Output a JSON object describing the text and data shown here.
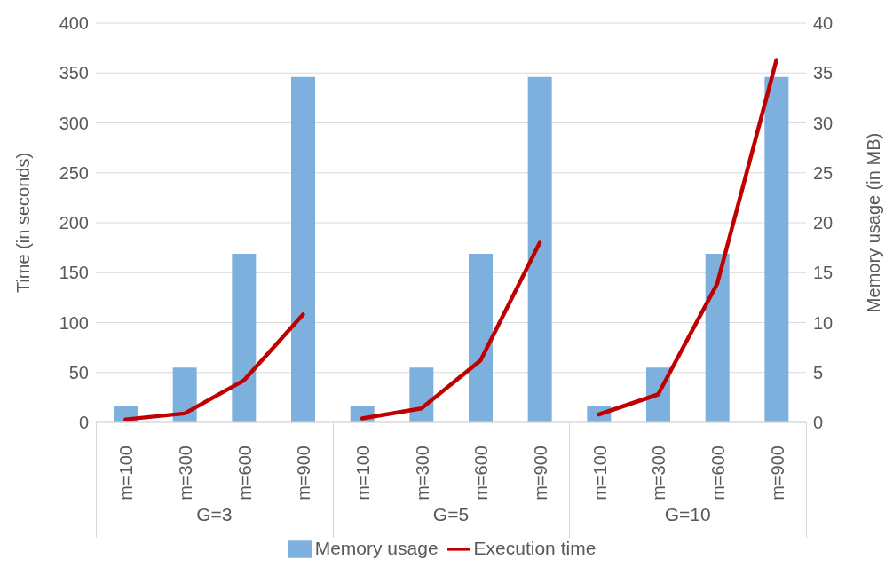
{
  "chart_data": {
    "type": "bar",
    "categories": [
      "m=100",
      "m=300",
      "m=600",
      "m=900",
      "m=100",
      "m=300",
      "m=600",
      "m=900",
      "m=100",
      "m=300",
      "m=600",
      "m=900"
    ],
    "series": [
      {
        "name": "Memory usage",
        "axis": "y2",
        "color": "#7eb0de",
        "values": [
          1.6,
          5.5,
          16.9,
          34.6,
          1.6,
          5.5,
          16.9,
          34.6,
          1.6,
          5.5,
          16.9,
          34.6
        ]
      },
      {
        "name": "Execution time",
        "type": "line",
        "axis": "y",
        "color": "#c00000",
        "values": [
          3,
          9,
          42,
          108,
          4,
          14,
          62,
          180,
          8,
          28,
          139,
          363
        ]
      }
    ],
    "ylabel": "Time (in seconds)",
    "y2label": "Memory usage (in MB)",
    "ylim": [
      0,
      400
    ],
    "yticks": [
      0,
      50,
      100,
      150,
      200,
      250,
      300,
      350,
      400
    ],
    "y2lim": [
      0,
      40
    ],
    "y2ticks": [
      0,
      5,
      10,
      15,
      20,
      25,
      30,
      35,
      40
    ],
    "annotations": [
      "G=3",
      "G=5",
      "G=10"
    ],
    "grid": "y",
    "legend": "bottom",
    "marker": "none",
    "line_style": "solid"
  }
}
